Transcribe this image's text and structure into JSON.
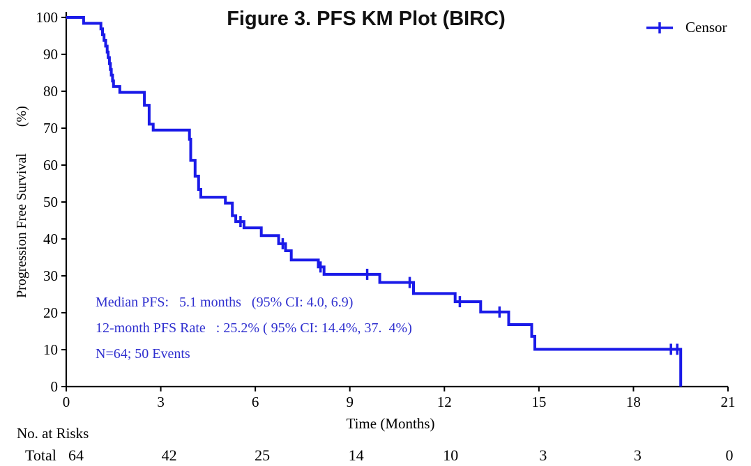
{
  "title": "Figure 3. PFS KM Plot (BIRC)",
  "legend": {
    "label": "Censor",
    "marker": "censor-plus"
  },
  "chart_data": {
    "type": "line",
    "subtype": "kaplan-meier-step",
    "title": "Figure 3. PFS KM Plot (BIRC)",
    "xlabel": "Time (Months)",
    "ylabel": "Progression Free Survival",
    "ylabel_unit": "(%)",
    "xlim": [
      0,
      21
    ],
    "ylim": [
      0,
      100
    ],
    "xticks": [
      0,
      3,
      6,
      9,
      12,
      15,
      18,
      21
    ],
    "yticks": [
      0,
      10,
      20,
      30,
      40,
      50,
      60,
      70,
      80,
      90,
      100
    ],
    "grid": false,
    "legend_position": "top-right",
    "line_color": "#1a1ae8",
    "axis_color": "#000000",
    "series": [
      {
        "name": "Total",
        "step_points": [
          [
            0,
            100
          ],
          [
            0.55,
            98.4
          ],
          [
            1.1,
            96.9
          ],
          [
            1.15,
            95.3
          ],
          [
            1.2,
            93.8
          ],
          [
            1.25,
            92.2
          ],
          [
            1.3,
            90.6
          ],
          [
            1.33,
            89.1
          ],
          [
            1.37,
            87.5
          ],
          [
            1.4,
            85.9
          ],
          [
            1.43,
            84.4
          ],
          [
            1.47,
            82.8
          ],
          [
            1.5,
            81.3
          ],
          [
            1.7,
            79.7
          ],
          [
            2.48,
            76.2
          ],
          [
            2.63,
            71.1
          ],
          [
            2.76,
            69.5
          ],
          [
            3.91,
            67
          ],
          [
            3.95,
            61.3
          ],
          [
            4.09,
            57
          ],
          [
            4.2,
            53.4
          ],
          [
            4.27,
            51.3
          ],
          [
            5.05,
            49.7
          ],
          [
            5.27,
            46.3
          ],
          [
            5.38,
            44.7
          ],
          [
            5.64,
            43
          ],
          [
            6.19,
            40.9
          ],
          [
            6.74,
            38.7
          ],
          [
            6.96,
            36.8
          ],
          [
            7.14,
            34.3
          ],
          [
            8,
            32.4
          ],
          [
            8.18,
            30.4
          ],
          [
            9.95,
            28.2
          ],
          [
            11.02,
            25.2
          ],
          [
            12.34,
            23
          ],
          [
            13.15,
            20.2
          ],
          [
            14.04,
            16.8
          ],
          [
            14.77,
            13.6
          ],
          [
            14.87,
            10.1
          ],
          [
            19.5,
            0
          ]
        ],
        "censor_marks": [
          [
            5.53,
            44.7
          ],
          [
            6.87,
            38.7
          ],
          [
            8.07,
            32.4
          ],
          [
            9.55,
            30.4
          ],
          [
            10.9,
            28.2
          ],
          [
            12.49,
            23
          ],
          [
            13.75,
            20.2
          ],
          [
            19.19,
            10.1
          ],
          [
            19.39,
            10.1
          ]
        ]
      }
    ]
  },
  "annotations": {
    "color": "#3030cf",
    "lines": [
      "Median PFS:   5.1 months   (95% CI: 4.0, 6.9)",
      "12-month PFS Rate   : 25.2% ( 95% CI: 14.4%, 37.  4%)",
      "N=64; 50 Events"
    ]
  },
  "risk_table": {
    "header": "No. at Risks",
    "row_label": "Total",
    "times": [
      0,
      3,
      6,
      9,
      12,
      15,
      18,
      21
    ],
    "values": [
      64,
      42,
      25,
      14,
      10,
      3,
      3,
      0
    ]
  }
}
